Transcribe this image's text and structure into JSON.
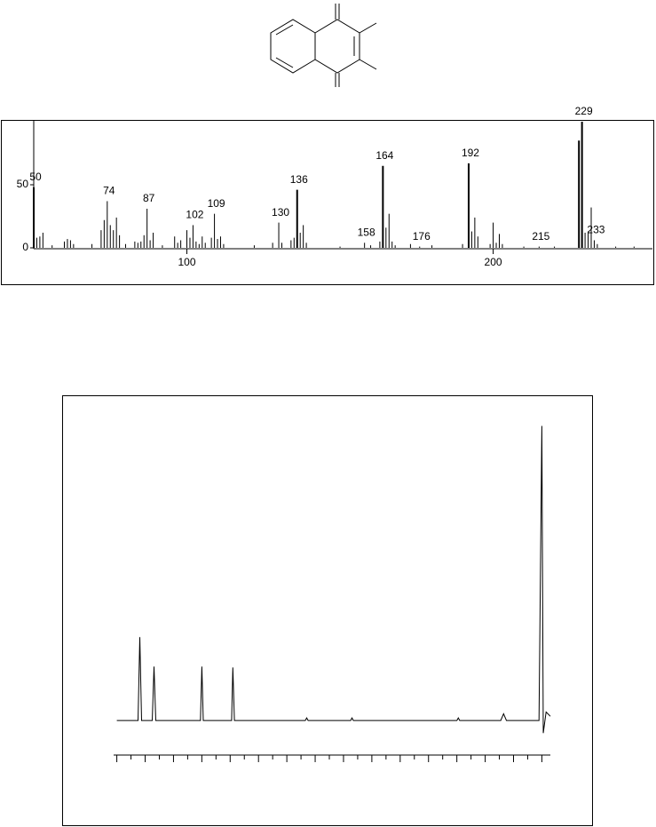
{
  "chart_data": [
    {
      "type": "bar",
      "x": [
        50,
        51,
        52,
        53,
        56,
        60,
        61,
        62,
        63,
        69,
        72,
        73,
        74,
        75,
        76,
        77,
        78,
        80,
        83,
        84,
        85,
        86,
        87,
        88,
        89,
        92,
        96,
        97,
        98,
        100,
        101,
        102,
        103,
        104,
        105,
        106,
        108,
        109,
        110,
        111,
        112,
        122,
        128,
        130,
        131,
        134,
        135,
        136,
        137,
        138,
        139,
        150,
        158,
        160,
        163,
        164,
        165,
        166,
        167,
        168,
        173,
        176,
        180,
        190,
        192,
        193,
        194,
        195,
        199,
        200,
        201,
        202,
        203,
        210,
        215,
        220,
        228,
        229,
        230,
        231,
        232,
        233,
        234,
        240,
        246
      ],
      "values": [
        48,
        8,
        9,
        12,
        2,
        5,
        7,
        6,
        3,
        3,
        14,
        22,
        37,
        18,
        14,
        24,
        10,
        3,
        5,
        4,
        5,
        10,
        31,
        6,
        12,
        2,
        9,
        4,
        6,
        14,
        8,
        18,
        5,
        3,
        9,
        4,
        8,
        27,
        7,
        9,
        3,
        2,
        4,
        20,
        4,
        6,
        8,
        46,
        12,
        18,
        4,
        1,
        4,
        2,
        5,
        65,
        16,
        27,
        5,
        2,
        3,
        1,
        2,
        3,
        67,
        13,
        24,
        9,
        3,
        20,
        4,
        11,
        3,
        1,
        1,
        1,
        85,
        100,
        12,
        13,
        32,
        6,
        3,
        1,
        1
      ],
      "labeled": [
        true,
        false,
        false,
        false,
        false,
        false,
        false,
        false,
        false,
        false,
        false,
        false,
        true,
        false,
        false,
        false,
        false,
        false,
        false,
        false,
        false,
        false,
        true,
        false,
        false,
        false,
        false,
        false,
        false,
        false,
        false,
        true,
        false,
        false,
        false,
        false,
        false,
        true,
        false,
        false,
        false,
        false,
        false,
        true,
        false,
        false,
        false,
        true,
        false,
        false,
        false,
        false,
        true,
        false,
        false,
        true,
        false,
        false,
        false,
        false,
        false,
        true,
        false,
        false,
        true,
        false,
        false,
        false,
        false,
        false,
        false,
        false,
        false,
        false,
        true,
        false,
        false,
        true,
        false,
        false,
        false,
        true,
        false,
        false,
        false
      ],
      "color": "#000000",
      "xlim": [
        50,
        252
      ],
      "xticks": [
        100,
        200
      ],
      "ylim": [
        0,
        100
      ],
      "yticks": [
        0,
        50
      ]
    },
    {
      "type": "line",
      "x": [
        0,
        1.5,
        1.625,
        1.75,
        2.5,
        2.625,
        2.75,
        5.9,
        6,
        6.1,
        8.1,
        8.19,
        8.3,
        13.3,
        13.4,
        13.5,
        16.5,
        16.6,
        16.7,
        24,
        24.1,
        24.2,
        27.1,
        27.3,
        27.5,
        29.8,
        30,
        30.1,
        30.3,
        30.6
      ],
      "values": [
        0,
        0,
        99,
        0,
        0,
        64,
        0,
        0,
        64,
        0,
        0,
        63,
        0,
        0,
        3,
        0,
        0,
        3,
        0,
        0,
        3,
        0,
        0,
        8,
        0,
        0,
        350,
        -15,
        10,
        5
      ],
      "color": "#000000",
      "xlim": [
        -0.1,
        30.6
      ],
      "xtick_marks": [
        0,
        1,
        2,
        3,
        4,
        5,
        6,
        7,
        8,
        9,
        10,
        11,
        12,
        13,
        14,
        15,
        16,
        17,
        18,
        19,
        20,
        21,
        22,
        23,
        24,
        25,
        26,
        27,
        28,
        29,
        30
      ],
      "ylim": [
        -20,
        360
      ]
    }
  ]
}
